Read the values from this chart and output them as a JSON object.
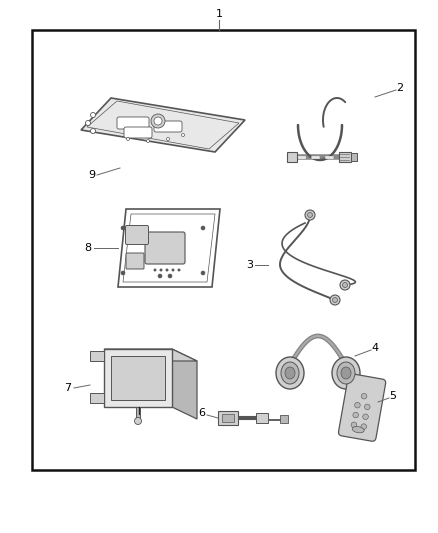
{
  "bg_color": "#ffffff",
  "border_color": "#111111",
  "line_color": "#666666",
  "text_color": "#000000",
  "fig_width": 4.38,
  "fig_height": 5.33,
  "dpi": 100,
  "labels": [
    "1",
    "2",
    "3",
    "4",
    "5",
    "6",
    "7",
    "8",
    "9"
  ],
  "stroke": "#555555",
  "fill_light": "#e8e8e8",
  "fill_mid": "#d0d0d0",
  "fill_dark": "#b8b8b8",
  "fill_white": "#ffffff"
}
